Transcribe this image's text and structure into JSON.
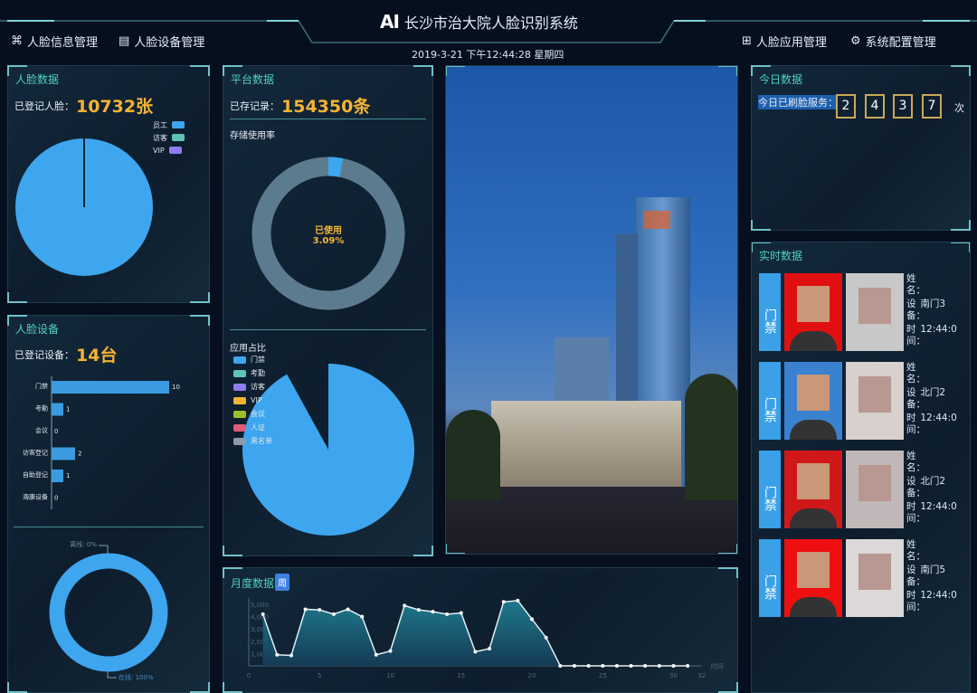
{
  "header": {
    "logo": "AI",
    "title": "长沙市治大院人脸识别系统",
    "datetime": "2019-3-21 下午12:44:28 星期四",
    "nav_left": [
      {
        "label": "人脸信息管理",
        "icon": "face-scan-icon"
      },
      {
        "label": "人脸设备管理",
        "icon": "device-icon"
      }
    ],
    "nav_right": [
      {
        "label": "人脸应用管理",
        "icon": "apps-icon"
      },
      {
        "label": "系统配置管理",
        "icon": "gear-icon"
      }
    ]
  },
  "face_data": {
    "title": "人脸数据",
    "label": "已登记人脸：",
    "value": "10732张",
    "legend": [
      "员工",
      "访客",
      "VIP"
    ],
    "colors": [
      "#3ea6ef",
      "#5fc4b8",
      "#8e7cf0"
    ],
    "shares": [
      0.995,
      0.005,
      0
    ]
  },
  "device": {
    "title": "人脸设备",
    "label": "已登记设备：",
    "value": "14台",
    "online_label": "在线: 100%",
    "offline_label": "离线: 0%",
    "online_share": 1
  },
  "platform": {
    "title": "平台数据",
    "label": "已存记录：",
    "value": "154350条",
    "storage_title": "存储使用率",
    "used_label": "已使用",
    "used_value": "3.09%",
    "used_share": 0.0309,
    "app_title": "应用占比",
    "app_legend": [
      "门禁",
      "考勤",
      "访客",
      "VIP",
      "会议",
      "人证",
      "黑名单"
    ],
    "app_colors": [
      "#3ea6ef",
      "#5fc4b8",
      "#8e7cf0",
      "#f5b335",
      "#9dc12a",
      "#e05a7a",
      "#8a9ab0"
    ]
  },
  "today": {
    "title": "今日数据",
    "label": "今日已刷脸服务：",
    "digits": [
      "2",
      "4",
      "3",
      "7"
    ],
    "unit": "次"
  },
  "realtime": {
    "title": "实时数据",
    "name_label": "姓名：",
    "device_label": "设备：",
    "time_label": "时间：",
    "rows": [
      {
        "tag": "门禁",
        "device": "南门3",
        "time": "12:44:0"
      },
      {
        "tag": "门禁",
        "device": "北门2",
        "time": "12:44:0"
      },
      {
        "tag": "门禁",
        "device": "北门2",
        "time": "12:44:0"
      },
      {
        "tag": "门禁",
        "device": "南门5",
        "time": "12:44:0"
      }
    ]
  },
  "monthly": {
    "title": "月度数据",
    "toggle": "周"
  },
  "chart_data": [
    {
      "type": "bar",
      "orientation": "horizontal",
      "categories": [
        "门禁",
        "考勤",
        "会议",
        "访客登记",
        "自助登记",
        "海康设备"
      ],
      "values": [
        10,
        1,
        0,
        2,
        1,
        0
      ]
    },
    {
      "type": "area",
      "x": [
        1,
        2,
        3,
        4,
        5,
        6,
        7,
        8,
        9,
        10,
        11,
        12,
        13,
        14,
        15,
        16,
        17,
        18,
        19,
        20,
        21,
        22,
        23,
        24,
        25,
        26,
        27,
        28,
        29,
        30,
        31
      ],
      "values": [
        4200,
        900,
        850,
        4600,
        4550,
        4200,
        4600,
        4000,
        900,
        1200,
        4900,
        4550,
        4400,
        4200,
        4300,
        1150,
        1400,
        5200,
        5300,
        3800,
        2300,
        0,
        0,
        0,
        0,
        0,
        0,
        0,
        0,
        0,
        0
      ],
      "xlim": [
        0,
        32
      ],
      "xticks": [
        0,
        5,
        10,
        15,
        20,
        25,
        30,
        32
      ],
      "yticks": [
        "1,000",
        "2,000",
        "3,000",
        "4,000",
        "5,000"
      ],
      "ylim": [
        0,
        5800
      ],
      "xlabel": "时间"
    },
    {
      "type": "pie",
      "title": "应用占比",
      "categories": [
        "门禁"
      ],
      "values": [
        0.92
      ]
    }
  ]
}
